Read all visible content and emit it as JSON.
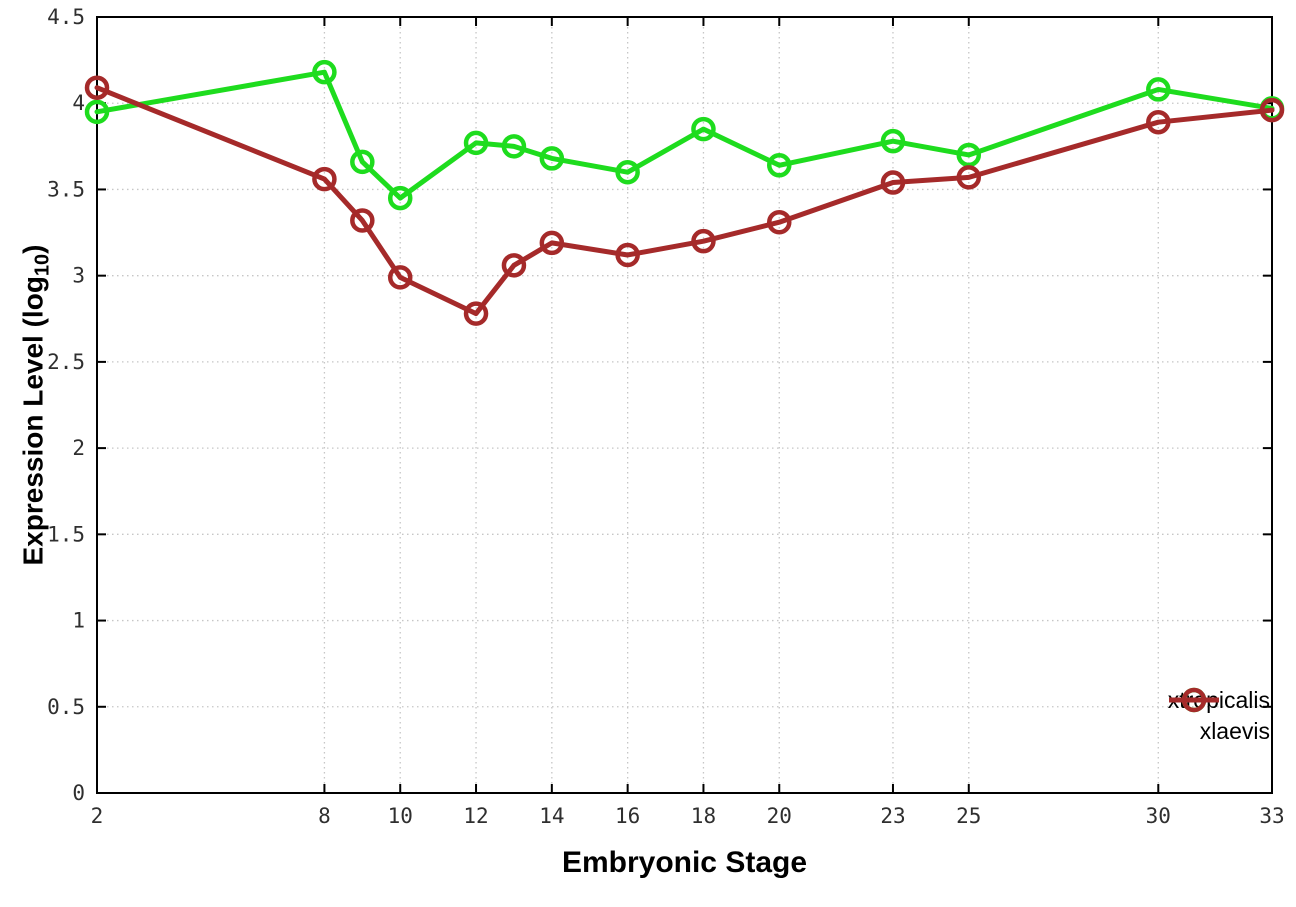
{
  "page": {
    "background": "#ffffff"
  },
  "chart_data": {
    "type": "line",
    "title": "",
    "xlabel": "Embryonic Stage",
    "ylabel": {
      "main": "Expression Level (log",
      "sub": "10",
      "end": ")"
    },
    "x": [
      2,
      8,
      9,
      10,
      12,
      13,
      14,
      16,
      18,
      20,
      23,
      25,
      30,
      33
    ],
    "series": [
      {
        "name": "xtropicalis",
        "color": "#1edc1e",
        "marker": "open-circle",
        "values": [
          3.95,
          4.18,
          3.66,
          3.45,
          3.77,
          3.75,
          3.68,
          3.6,
          3.85,
          3.64,
          3.78,
          3.7,
          4.08,
          3.97
        ]
      },
      {
        "name": "xlaevis",
        "color": "#a52a2a",
        "marker": "open-circle",
        "values": [
          4.09,
          3.56,
          3.32,
          2.99,
          2.78,
          3.06,
          3.19,
          3.12,
          3.2,
          3.31,
          3.54,
          3.57,
          3.89,
          3.96
        ]
      }
    ],
    "xticks": [
      2,
      8,
      10,
      12,
      14,
      16,
      18,
      20,
      23,
      25,
      30,
      33
    ],
    "yticks": [
      0,
      0.5,
      1,
      1.5,
      2,
      2.5,
      3,
      3.5,
      4,
      4.5
    ],
    "xlim": [
      2,
      33
    ],
    "ylim": [
      0,
      4.5
    ],
    "grid": true,
    "legend_position": "bottom-right",
    "style": {
      "grid_color": "#c6c6c6",
      "axis_color": "#000000",
      "tick_label_color": "#2f2f2f",
      "line_width": 5,
      "marker_radius": 10,
      "marker_stroke": 4.5
    }
  }
}
